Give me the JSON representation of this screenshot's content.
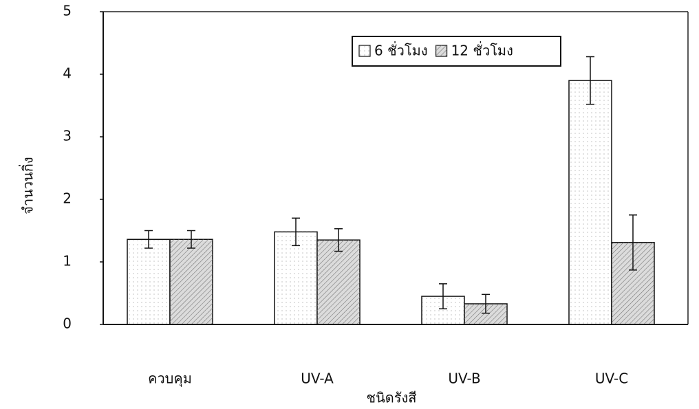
{
  "chart_data": {
    "type": "bar",
    "x_label": "ชนิดรังสี",
    "y_label": "จำนวนกิ่ง",
    "categories": [
      "ควบคุม",
      "UV-A",
      "UV-B",
      "UV-C"
    ],
    "series": [
      {
        "name": "6 ชั่วโมง",
        "color": "#ffffff",
        "values": [
          1.36,
          1.48,
          0.45,
          3.9
        ],
        "errors": [
          0.14,
          0.22,
          0.2,
          0.38
        ]
      },
      {
        "name": "12 ชั่วโมง",
        "color": "#dcdcdc",
        "values": [
          1.36,
          1.35,
          0.33,
          1.31
        ],
        "errors": [
          0.14,
          0.18,
          0.15,
          0.44
        ]
      }
    ],
    "ylim": [
      0,
      5
    ],
    "yticks": [
      0,
      1,
      2,
      3,
      4,
      5
    ],
    "grid": false,
    "legend": "top-center"
  }
}
